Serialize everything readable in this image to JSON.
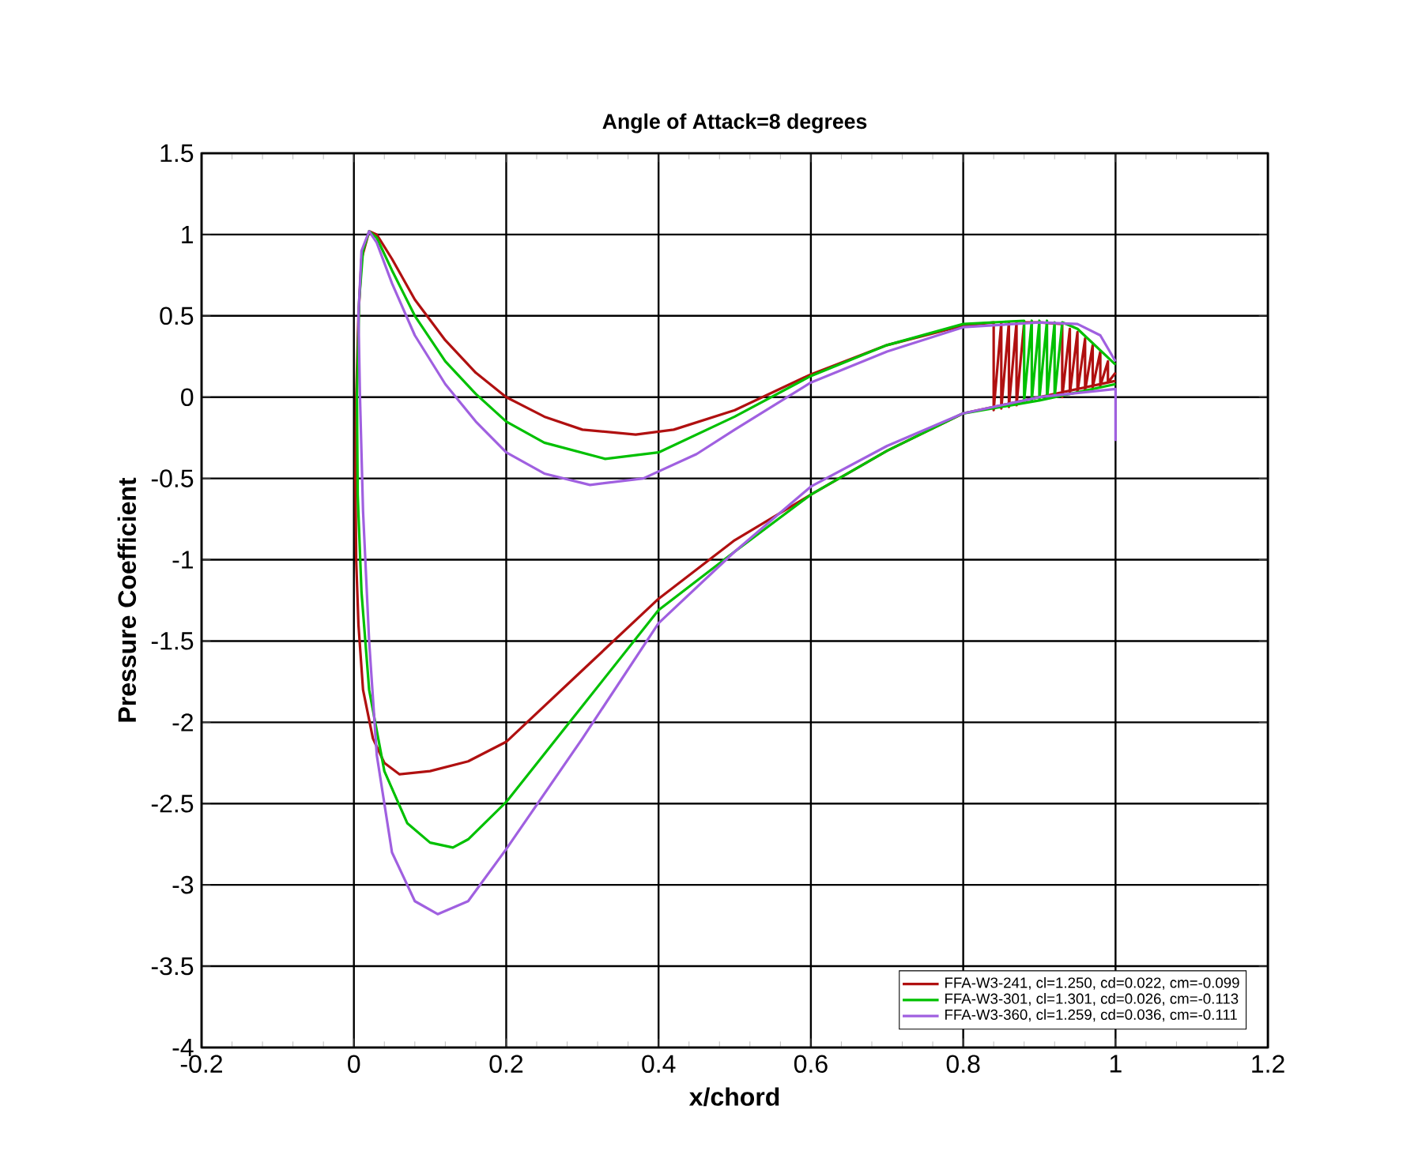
{
  "chart_data": {
    "type": "line",
    "title": "Angle of Attack=8 degrees",
    "xlabel": "x/chord",
    "ylabel": "Pressure Coefficient",
    "xlim": [
      -0.2,
      1.2
    ],
    "ylim": [
      -4,
      1.5
    ],
    "xticks": [
      -0.2,
      0,
      0.2,
      0.4,
      0.6,
      0.8,
      1,
      1.2
    ],
    "yticks": [
      -4,
      -3.5,
      -3,
      -2.5,
      -2,
      -1.5,
      -1,
      -0.5,
      0,
      0.5,
      1,
      1.5
    ],
    "grid": true,
    "legend": "bottom right",
    "series": [
      {
        "name": "FFA-W3-241, cl=1.250, cd=0.022, cm=-0.099",
        "color": "#b01010",
        "x": [
          1.0,
          0.95,
          0.9,
          0.85,
          0.8,
          0.7,
          0.6,
          0.5,
          0.4,
          0.3,
          0.2,
          0.15,
          0.1,
          0.06,
          0.04,
          0.025,
          0.012,
          0.006,
          0.003,
          0.002,
          0.003,
          0.006,
          0.01,
          0.02,
          0.03,
          0.05,
          0.08,
          0.12,
          0.16,
          0.2,
          0.25,
          0.3,
          0.37,
          0.42,
          0.5,
          0.6,
          0.7,
          0.8,
          0.84,
          0.84,
          0.85,
          0.85,
          0.86,
          0.86,
          0.87,
          0.87,
          0.88,
          0.9,
          0.93,
          0.93,
          0.94,
          0.94,
          0.95,
          0.95,
          0.96,
          0.96,
          0.97,
          0.97,
          0.98,
          0.98,
          0.99,
          0.99,
          1.0
        ],
        "values": [
          0.1,
          0.05,
          0.0,
          -0.05,
          -0.1,
          -0.33,
          -0.6,
          -0.88,
          -1.24,
          -1.68,
          -2.12,
          -2.24,
          -2.3,
          -2.32,
          -2.25,
          -2.1,
          -1.8,
          -1.4,
          -1.0,
          -0.5,
          0.0,
          0.5,
          0.85,
          1.02,
          1.0,
          0.85,
          0.6,
          0.35,
          0.15,
          0.0,
          -0.12,
          -0.2,
          -0.23,
          -0.2,
          -0.08,
          0.14,
          0.32,
          0.44,
          0.46,
          -0.08,
          0.46,
          -0.07,
          0.46,
          -0.06,
          0.46,
          -0.05,
          0.46,
          0.46,
          0.45,
          0.0,
          0.42,
          0.02,
          0.4,
          0.03,
          0.36,
          0.04,
          0.32,
          0.06,
          0.28,
          0.07,
          0.22,
          0.09,
          0.15
        ]
      },
      {
        "name": "FFA-W3-301, cl=1.301, cd=0.026, cm=-0.113",
        "color": "#00c000",
        "x": [
          1.0,
          0.9,
          0.8,
          0.7,
          0.6,
          0.5,
          0.4,
          0.3,
          0.2,
          0.15,
          0.13,
          0.1,
          0.07,
          0.04,
          0.02,
          0.01,
          0.005,
          0.004,
          0.007,
          0.012,
          0.02,
          0.03,
          0.05,
          0.08,
          0.12,
          0.16,
          0.2,
          0.25,
          0.33,
          0.4,
          0.5,
          0.6,
          0.7,
          0.8,
          0.88,
          0.88,
          0.89,
          0.89,
          0.9,
          0.9,
          0.91,
          0.91,
          0.92,
          0.92,
          0.93,
          0.95,
          1.0
        ],
        "values": [
          0.08,
          -0.02,
          -0.1,
          -0.33,
          -0.6,
          -0.95,
          -1.31,
          -1.9,
          -2.49,
          -2.72,
          -2.77,
          -2.74,
          -2.62,
          -2.3,
          -1.8,
          -1.2,
          -0.6,
          0.0,
          0.6,
          0.9,
          1.02,
          0.98,
          0.78,
          0.5,
          0.22,
          0.02,
          -0.15,
          -0.28,
          -0.38,
          -0.34,
          -0.12,
          0.13,
          0.32,
          0.45,
          0.47,
          -0.02,
          0.47,
          -0.02,
          0.47,
          -0.01,
          0.47,
          -0.01,
          0.46,
          0.0,
          0.46,
          0.42,
          0.2
        ]
      },
      {
        "name": "FFA-W3-360, cl=1.259, cd=0.036, cm=-0.111",
        "color": "#a060e0",
        "x": [
          1.0,
          1.0,
          0.9,
          0.8,
          0.7,
          0.6,
          0.5,
          0.4,
          0.3,
          0.2,
          0.15,
          0.11,
          0.08,
          0.05,
          0.03,
          0.02,
          0.012,
          0.008,
          0.006,
          0.01,
          0.02,
          0.03,
          0.05,
          0.08,
          0.12,
          0.16,
          0.2,
          0.25,
          0.31,
          0.38,
          0.45,
          0.5,
          0.6,
          0.7,
          0.8,
          0.9,
          0.95,
          0.98,
          1.0
        ],
        "values": [
          -0.27,
          0.05,
          0.0,
          -0.1,
          -0.3,
          -0.55,
          -0.95,
          -1.39,
          -2.1,
          -2.78,
          -3.1,
          -3.18,
          -3.1,
          -2.8,
          -2.2,
          -1.5,
          -0.7,
          0.0,
          0.5,
          0.9,
          1.02,
          0.95,
          0.7,
          0.38,
          0.08,
          -0.15,
          -0.34,
          -0.47,
          -0.54,
          -0.5,
          -0.35,
          -0.2,
          0.09,
          0.28,
          0.43,
          0.46,
          0.45,
          0.38,
          0.22
        ]
      }
    ]
  }
}
